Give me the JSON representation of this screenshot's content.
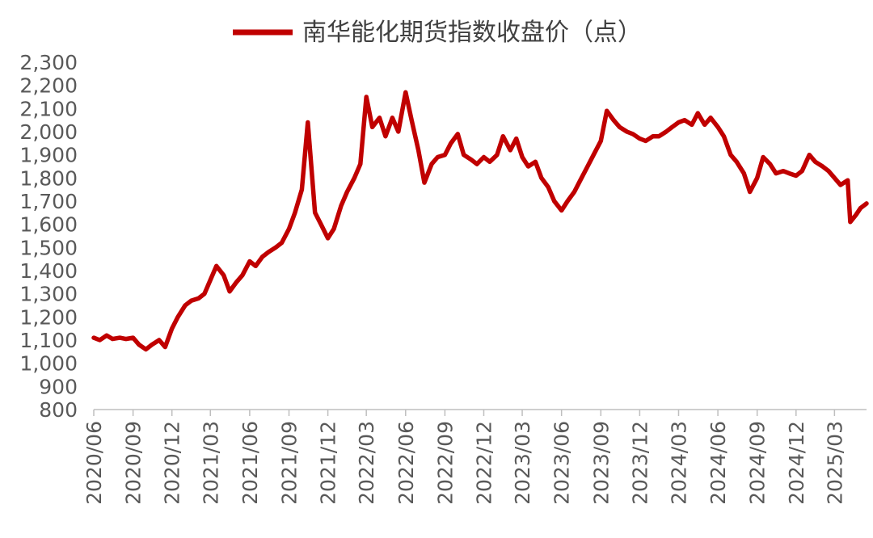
{
  "chart_data": {
    "type": "line",
    "title": "",
    "xlabel": "",
    "ylabel": "",
    "ylim": [
      800,
      2300
    ],
    "y_ticks": [
      800,
      900,
      1000,
      1100,
      1200,
      1300,
      1400,
      1500,
      1600,
      1700,
      1800,
      1900,
      2000,
      2100,
      2200,
      2300
    ],
    "y_tick_labels": [
      "800",
      "900",
      "1,000",
      "1,100",
      "1,200",
      "1,300",
      "1,400",
      "1,500",
      "1,600",
      "1,700",
      "1,800",
      "1,900",
      "2,000",
      "2,100",
      "2,200",
      "2,300"
    ],
    "x_tick_labels": [
      "2020/06",
      "2020/09",
      "2020/12",
      "2021/03",
      "2021/06",
      "2021/09",
      "2021/12",
      "2022/03",
      "2022/06",
      "2022/09",
      "2022/12",
      "2023/03",
      "2023/06",
      "2023/09",
      "2023/12",
      "2024/03",
      "2024/06",
      "2024/09",
      "2024/12",
      "2025/03"
    ],
    "x_range": [
      "2020-06-01",
      "2025-05-15"
    ],
    "grid": false,
    "legend_position": "top-center",
    "series": [
      {
        "name": "南华能化期货指数收盘价（点）",
        "color": "#C00000",
        "x": [
          "2020-06-01",
          "2020-06-15",
          "2020-07-01",
          "2020-07-15",
          "2020-08-01",
          "2020-08-15",
          "2020-09-01",
          "2020-09-15",
          "2020-10-01",
          "2020-10-15",
          "2020-11-01",
          "2020-11-15",
          "2020-12-01",
          "2020-12-15",
          "2021-01-01",
          "2021-01-15",
          "2021-02-01",
          "2021-02-15",
          "2021-03-01",
          "2021-03-15",
          "2021-04-01",
          "2021-04-15",
          "2021-05-01",
          "2021-05-15",
          "2021-06-01",
          "2021-06-15",
          "2021-07-01",
          "2021-07-15",
          "2021-08-01",
          "2021-08-15",
          "2021-09-01",
          "2021-09-15",
          "2021-10-01",
          "2021-10-15",
          "2021-11-01",
          "2021-11-15",
          "2021-12-01",
          "2021-12-15",
          "2022-01-01",
          "2022-01-15",
          "2022-02-01",
          "2022-02-15",
          "2022-03-01",
          "2022-03-15",
          "2022-04-01",
          "2022-04-15",
          "2022-05-01",
          "2022-05-15",
          "2022-06-01",
          "2022-06-15",
          "2022-07-01",
          "2022-07-15",
          "2022-08-01",
          "2022-08-15",
          "2022-09-01",
          "2022-09-15",
          "2022-10-01",
          "2022-10-15",
          "2022-11-01",
          "2022-11-15",
          "2022-12-01",
          "2022-12-15",
          "2023-01-01",
          "2023-01-15",
          "2023-02-01",
          "2023-02-15",
          "2023-03-01",
          "2023-03-15",
          "2023-04-01",
          "2023-04-15",
          "2023-05-01",
          "2023-05-15",
          "2023-06-01",
          "2023-06-15",
          "2023-07-01",
          "2023-07-15",
          "2023-08-01",
          "2023-08-15",
          "2023-09-01",
          "2023-09-15",
          "2023-10-01",
          "2023-10-15",
          "2023-11-01",
          "2023-11-15",
          "2023-12-01",
          "2023-12-15",
          "2024-01-01",
          "2024-01-15",
          "2024-02-01",
          "2024-02-15",
          "2024-03-01",
          "2024-03-15",
          "2024-04-01",
          "2024-04-15",
          "2024-05-01",
          "2024-05-15",
          "2024-06-01",
          "2024-06-15",
          "2024-07-01",
          "2024-07-15",
          "2024-08-01",
          "2024-08-15",
          "2024-09-01",
          "2024-09-15",
          "2024-10-01",
          "2024-10-15",
          "2024-11-01",
          "2024-11-15",
          "2024-12-01",
          "2024-12-15",
          "2025-01-01",
          "2025-01-15",
          "2025-02-01",
          "2025-02-15",
          "2025-03-01",
          "2025-03-15",
          "2025-04-01",
          "2025-04-07",
          "2025-04-20",
          "2025-05-01",
          "2025-05-15"
        ],
        "values": [
          1110,
          1100,
          1120,
          1105,
          1110,
          1105,
          1110,
          1080,
          1060,
          1080,
          1100,
          1070,
          1150,
          1200,
          1250,
          1270,
          1280,
          1300,
          1360,
          1420,
          1380,
          1310,
          1350,
          1380,
          1440,
          1420,
          1460,
          1480,
          1500,
          1520,
          1580,
          1650,
          1750,
          2040,
          1650,
          1600,
          1540,
          1580,
          1680,
          1740,
          1800,
          1860,
          2150,
          2020,
          2060,
          1980,
          2060,
          2000,
          2170,
          2050,
          1920,
          1780,
          1860,
          1890,
          1900,
          1950,
          1990,
          1900,
          1880,
          1860,
          1890,
          1870,
          1900,
          1980,
          1920,
          1970,
          1890,
          1850,
          1870,
          1800,
          1760,
          1700,
          1660,
          1700,
          1740,
          1790,
          1850,
          1900,
          1960,
          2090,
          2050,
          2020,
          2000,
          1990,
          1970,
          1960,
          1980,
          1980,
          2000,
          2020,
          2040,
          2050,
          2030,
          2080,
          2030,
          2060,
          2020,
          1980,
          1900,
          1870,
          1820,
          1740,
          1800,
          1890,
          1860,
          1820,
          1830,
          1820,
          1810,
          1830,
          1900,
          1870,
          1850,
          1830,
          1800,
          1770,
          1790,
          1610,
          1640,
          1670,
          1690
        ]
      }
    ]
  }
}
